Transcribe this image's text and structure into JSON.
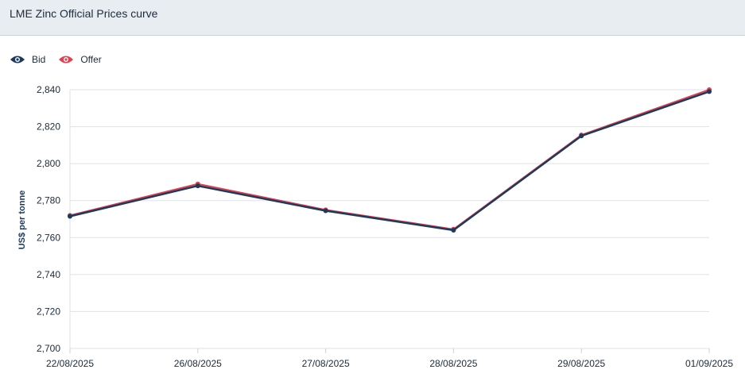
{
  "header": {
    "title": "LME Zinc Official Prices curve"
  },
  "legend": {
    "items": [
      {
        "label": "Bid",
        "color": "#1c3a5e",
        "icon": "eye-icon"
      },
      {
        "label": "Offer",
        "color": "#e0404f",
        "icon": "eye-icon"
      }
    ]
  },
  "chart_data": {
    "type": "line",
    "title": "LME Zinc Official Prices curve",
    "xlabel": "",
    "ylabel": "US$ per tonne",
    "categories": [
      "22/08/2025",
      "26/08/2025",
      "27/08/2025",
      "28/08/2025",
      "29/08/2025",
      "01/09/2025"
    ],
    "series": [
      {
        "name": "Bid",
        "color": "#1c3a5e",
        "values": [
          2771.5,
          2788,
          2774.5,
          2764,
          2815,
          2839
        ]
      },
      {
        "name": "Offer",
        "color": "#e0404f",
        "values": [
          2772,
          2789,
          2775,
          2764.5,
          2815.5,
          2840
        ]
      }
    ],
    "ylim": [
      2700,
      2840
    ],
    "yticks": [
      "2,700",
      "2,720",
      "2,740",
      "2,760",
      "2,780",
      "2,800",
      "2,820",
      "2,840"
    ],
    "ytick_values": [
      2700,
      2720,
      2740,
      2760,
      2780,
      2800,
      2820,
      2840
    ],
    "grid": true,
    "legend_position": "top-left"
  }
}
